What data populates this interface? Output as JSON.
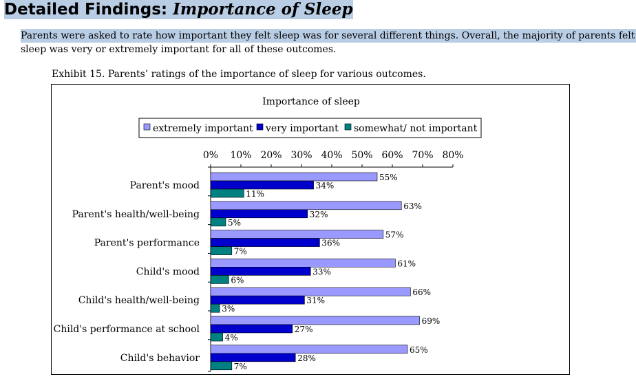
{
  "heading": {
    "plain": "Detailed Findings: ",
    "italic": "Importance of Sleep"
  },
  "paragraph": {
    "line1": "Parents were asked to rate how important they felt sleep was for several different things.  Overall, the majority of parents felt that",
    "line2": "sleep was very or extremely important for all of these outcomes."
  },
  "exhibit_caption": "Exhibit 15.  Parents’ ratings of the importance of sleep for various outcomes.",
  "colors": {
    "extremely": "#9999ff",
    "very": "#0000cc",
    "somewhat": "#008080",
    "highlight": "#b9cde5"
  },
  "chart_data": {
    "type": "bar",
    "orientation": "horizontal",
    "title": "Importance of sleep",
    "categories": [
      "Parent's mood",
      "Parent's health/well-being",
      "Parent's performance",
      "Child's mood",
      "Child's health/well-being",
      "Child's performance at school",
      "Child's behavior"
    ],
    "series": [
      {
        "name": "extremely important",
        "values": [
          55,
          63,
          57,
          61,
          66,
          69,
          65
        ]
      },
      {
        "name": "very important",
        "values": [
          34,
          32,
          36,
          33,
          31,
          27,
          28
        ]
      },
      {
        "name": "somewhat/ not important",
        "values": [
          11,
          5,
          7,
          6,
          3,
          4,
          7
        ]
      }
    ],
    "x_ticks": [
      "0%",
      "10%",
      "20%",
      "30%",
      "40%",
      "50%",
      "60%",
      "70%",
      "80%"
    ],
    "xlim": [
      0,
      80
    ],
    "value_suffix": "%",
    "legend_position": "top",
    "grid": false
  }
}
